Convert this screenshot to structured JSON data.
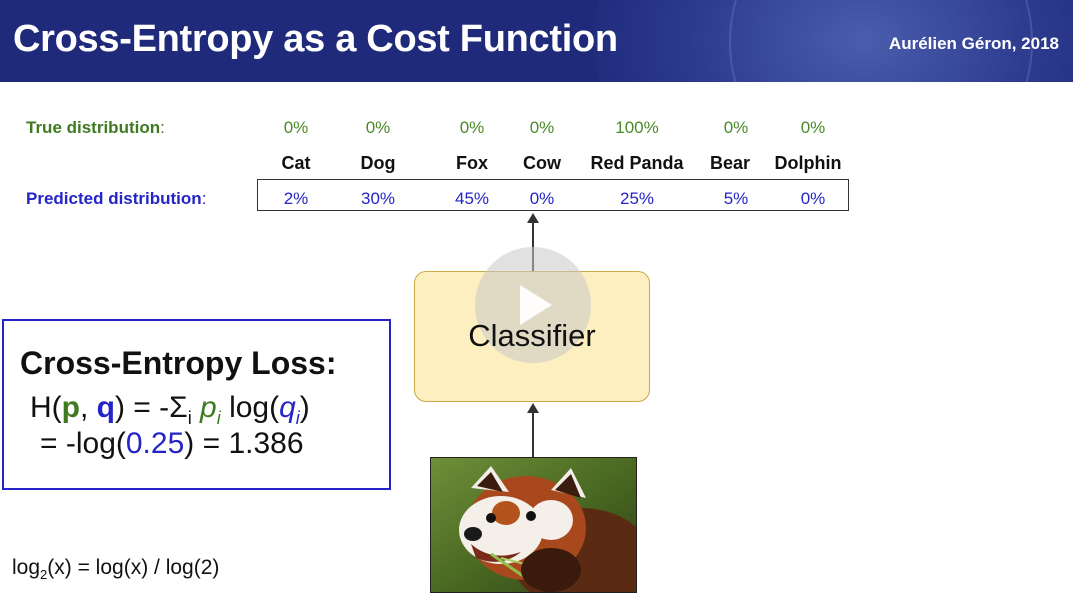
{
  "slide": {
    "title": "Cross-Entropy as a Cost Function",
    "author": "Aurélien Géron, 2018"
  },
  "distribution": {
    "true_label": "True distribution",
    "predicted_label": "Predicted distribution",
    "colon": ":",
    "categories": [
      "Cat",
      "Dog",
      "Fox",
      "Cow",
      "Red Panda",
      "Bear",
      "Dolphin"
    ],
    "true_values": [
      "0%",
      "0%",
      "0%",
      "0%",
      "100%",
      "0%",
      "0%"
    ],
    "predicted_values": [
      "2%",
      "30%",
      "45%",
      "0%",
      "25%",
      "5%",
      "0%"
    ]
  },
  "classifier": {
    "label": "Classifier"
  },
  "loss": {
    "title": "Cross-Entropy Loss:",
    "formula_h": "H(",
    "formula_p": "p",
    "formula_comma": ", ",
    "formula_q": "q",
    "formula_mid": ") = -Σ",
    "formula_sub_i": "i",
    "formula_pi": "p",
    "formula_log": " log(",
    "formula_qi": "q",
    "formula_close": ")",
    "result_pre": "= -log(",
    "result_value": "0.25",
    "result_post": ") = 1.386"
  },
  "note": {
    "log_pre": "log",
    "log_sub": "2",
    "log_post": "(x) = log(x) / log(2)"
  },
  "colors": {
    "header": "#1f2a7a",
    "true_green": "#3f7a22",
    "pred_blue": "#2424c8",
    "classifier_fill": "#fdefc0"
  },
  "icons": {
    "video_overlay": "play-icon"
  }
}
